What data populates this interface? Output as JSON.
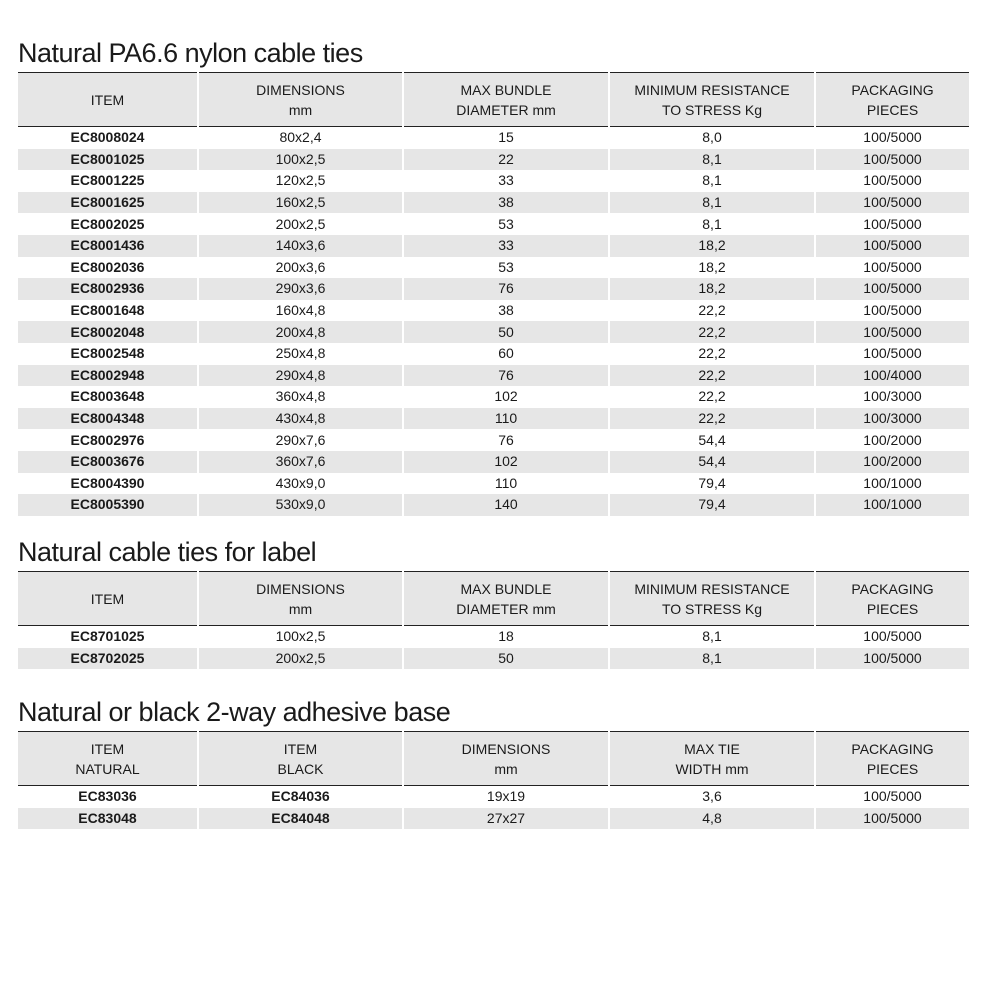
{
  "tables": [
    {
      "title": "Natural PA6.6 nylon cable ties",
      "headers": [
        "ITEM",
        "DIMENSIONS\nmm",
        "MAX BUNDLE\nDIAMETER  mm",
        "MINIMUM RESISTANCE\nTO STRESS Kg",
        "PACKAGING\nPIECES"
      ],
      "bold_cols": [
        0
      ],
      "rows": [
        [
          "EC8008024",
          "80x2,4",
          "15",
          "8,0",
          "100/5000"
        ],
        [
          "EC8001025",
          "100x2,5",
          "22",
          "8,1",
          "100/5000"
        ],
        [
          "EC8001225",
          "120x2,5",
          "33",
          "8,1",
          "100/5000"
        ],
        [
          "EC8001625",
          "160x2,5",
          "38",
          "8,1",
          "100/5000"
        ],
        [
          "EC8002025",
          "200x2,5",
          "53",
          "8,1",
          "100/5000"
        ],
        [
          "EC8001436",
          "140x3,6",
          "33",
          "18,2",
          "100/5000"
        ],
        [
          "EC8002036",
          "200x3,6",
          "53",
          "18,2",
          "100/5000"
        ],
        [
          "EC8002936",
          "290x3,6",
          "76",
          "18,2",
          "100/5000"
        ],
        [
          "EC8001648",
          "160x4,8",
          "38",
          "22,2",
          "100/5000"
        ],
        [
          "EC8002048",
          "200x4,8",
          "50",
          "22,2",
          "100/5000"
        ],
        [
          "EC8002548",
          "250x4,8",
          "60",
          "22,2",
          "100/5000"
        ],
        [
          "EC8002948",
          "290x4,8",
          "76",
          "22,2",
          "100/4000"
        ],
        [
          "EC8003648",
          "360x4,8",
          "102",
          "22,2",
          "100/3000"
        ],
        [
          "EC8004348",
          "430x4,8",
          "110",
          "22,2",
          "100/3000"
        ],
        [
          "EC8002976",
          "290x7,6",
          "76",
          "54,4",
          "100/2000"
        ],
        [
          "EC8003676",
          "360x7,6",
          "102",
          "54,4",
          "100/2000"
        ],
        [
          "EC8004390",
          "430x9,0",
          "110",
          "79,4",
          "100/1000"
        ],
        [
          "EC8005390",
          "530x9,0",
          "140",
          "79,4",
          "100/1000"
        ]
      ]
    },
    {
      "title": "Natural cable ties for label",
      "headers": [
        "ITEM",
        "DIMENSIONS\nmm",
        "MAX BUNDLE\nDIAMETER  mm",
        "MINIMUM RESISTANCE\nTO STRESS Kg",
        "PACKAGING\nPIECES"
      ],
      "bold_cols": [
        0
      ],
      "rows": [
        [
          "EC8701025",
          "100x2,5",
          "18",
          "8,1",
          "100/5000"
        ],
        [
          "EC8702025",
          "200x2,5",
          "50",
          "8,1",
          "100/5000"
        ]
      ]
    },
    {
      "title": "Natural or black 2-way adhesive base",
      "headers": [
        "ITEM\nNATURAL",
        "ITEM\nBLACK",
        "DIMENSIONS\nmm",
        "MAX TIE\nWIDTH mm",
        "PACKAGING\nPIECES"
      ],
      "bold_cols": [
        0,
        1
      ],
      "rows": [
        [
          "EC83036",
          "EC84036",
          "19x19",
          "3,6",
          "100/5000"
        ],
        [
          "EC83048",
          "EC84048",
          "27x27",
          "4,8",
          "100/5000"
        ]
      ]
    }
  ]
}
